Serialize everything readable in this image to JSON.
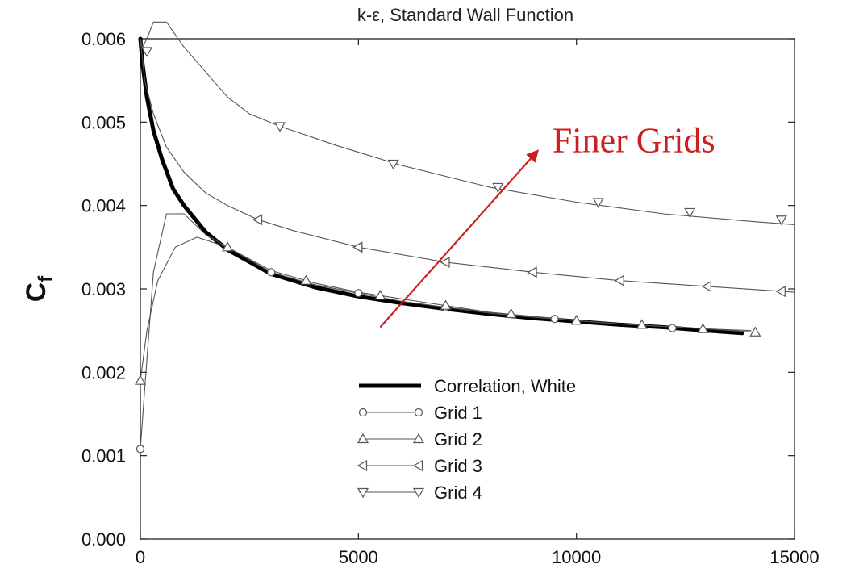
{
  "chart_data": {
    "type": "line",
    "title": "k-ε, Standard Wall Function",
    "xlabel": "",
    "ylabel": "Cf",
    "xlim": [
      0,
      15000
    ],
    "ylim": [
      0,
      0.006
    ],
    "xticks": [
      0,
      5000,
      10000,
      15000
    ],
    "xtick_labels": [
      "0",
      "5000",
      "10000",
      "15000"
    ],
    "yticks": [
      0,
      0.001,
      0.002,
      0.003,
      0.004,
      0.005,
      0.006
    ],
    "ytick_labels": [
      "0.000",
      "0.001",
      "0.002",
      "0.003",
      "0.004",
      "0.005",
      "0.006"
    ],
    "grid": false,
    "legend_position": "lower-center",
    "series": [
      {
        "name": "Correlation, White",
        "marker": "none",
        "color": "#000000",
        "x": [
          0,
          50,
          150,
          300,
          500,
          750,
          1000,
          1500,
          2000,
          3000,
          4000,
          5000,
          6000,
          7000,
          8000,
          9000,
          10000,
          11000,
          12000,
          13000,
          13800
        ],
        "y": [
          0.006,
          0.0057,
          0.0053,
          0.0049,
          0.00455,
          0.0042,
          0.004,
          0.00368,
          0.00347,
          0.00318,
          0.00302,
          0.00291,
          0.00283,
          0.00276,
          0.0027,
          0.00265,
          0.00261,
          0.00257,
          0.00254,
          0.0025,
          0.00247
        ]
      },
      {
        "name": "Grid 1",
        "marker": "circle",
        "color": "#555555",
        "x": [
          0,
          100,
          300,
          600,
          1000,
          1500,
          2000,
          3000,
          4000,
          5000,
          6000,
          7000,
          8000,
          9000,
          10000,
          11000,
          12000,
          13000,
          14000
        ],
        "y": [
          0.00108,
          0.0018,
          0.0032,
          0.0039,
          0.0039,
          0.00365,
          0.0035,
          0.0032,
          0.00305,
          0.00295,
          0.00285,
          0.00278,
          0.00271,
          0.00266,
          0.00262,
          0.00258,
          0.00255,
          0.00252,
          0.0025
        ],
        "marker_x": [
          0,
          3000,
          5000,
          7000,
          9500,
          12200
        ],
        "marker_y": [
          0.00108,
          0.0032,
          0.00295,
          0.00278,
          0.00264,
          0.00253
        ]
      },
      {
        "name": "Grid 2",
        "marker": "triangle-up",
        "color": "#555555",
        "x": [
          0,
          150,
          400,
          800,
          1300,
          2000,
          3000,
          4000,
          5000,
          6000,
          7000,
          8000,
          9000,
          10000,
          11000,
          12000,
          13000,
          14100
        ],
        "y": [
          0.0019,
          0.0025,
          0.0031,
          0.0035,
          0.00362,
          0.0035,
          0.00322,
          0.00307,
          0.00296,
          0.00288,
          0.0028,
          0.00272,
          0.00267,
          0.00262,
          0.00258,
          0.00255,
          0.00252,
          0.00248
        ],
        "marker_x": [
          0,
          2000,
          3800,
          5500,
          7000,
          8500,
          10000,
          11500,
          12900,
          14100
        ],
        "marker_y": [
          0.0019,
          0.0035,
          0.0031,
          0.00292,
          0.0028,
          0.0027,
          0.00262,
          0.00257,
          0.00252,
          0.00248
        ]
      },
      {
        "name": "Grid 3",
        "marker": "triangle-left",
        "color": "#555555",
        "x": [
          0,
          100,
          300,
          600,
          1000,
          1500,
          2000,
          2700,
          3500,
          5000,
          7000,
          9000,
          11000,
          13000,
          15000
        ],
        "y": [
          0.006,
          0.0055,
          0.0051,
          0.0047,
          0.0044,
          0.00415,
          0.004,
          0.00383,
          0.0037,
          0.0035,
          0.00332,
          0.0032,
          0.0031,
          0.00303,
          0.00296
        ],
        "marker_x": [
          2700,
          5000,
          7000,
          9000,
          11000,
          13000,
          14700
        ],
        "marker_y": [
          0.00383,
          0.0035,
          0.00332,
          0.0032,
          0.0031,
          0.00303,
          0.00297
        ]
      },
      {
        "name": "Grid 4",
        "marker": "triangle-down",
        "color": "#555555",
        "x": [
          0,
          50,
          150,
          300,
          600,
          1000,
          1500,
          2000,
          2500,
          3200,
          4500,
          6000,
          8000,
          10000,
          12000,
          14000,
          15000
        ],
        "y": [
          0.006,
          0.0059,
          0.006,
          0.0062,
          0.0062,
          0.0059,
          0.0056,
          0.0053,
          0.0051,
          0.00495,
          0.00472,
          0.00448,
          0.00422,
          0.00404,
          0.0039,
          0.00381,
          0.00377
        ],
        "marker_x": [
          150,
          3200,
          5800,
          8200,
          10500,
          12600,
          14700
        ],
        "marker_y": [
          0.00585,
          0.00495,
          0.0045,
          0.00422,
          0.00404,
          0.00392,
          0.00383
        ]
      }
    ],
    "annotations": [
      {
        "text": "Finer Grids",
        "color": "#cc1f1f",
        "arrow_from": [
          5500,
          0.00254
        ],
        "arrow_to": [
          9100,
          0.00465
        ],
        "text_at": [
          9450,
          0.00464
        ]
      }
    ]
  }
}
